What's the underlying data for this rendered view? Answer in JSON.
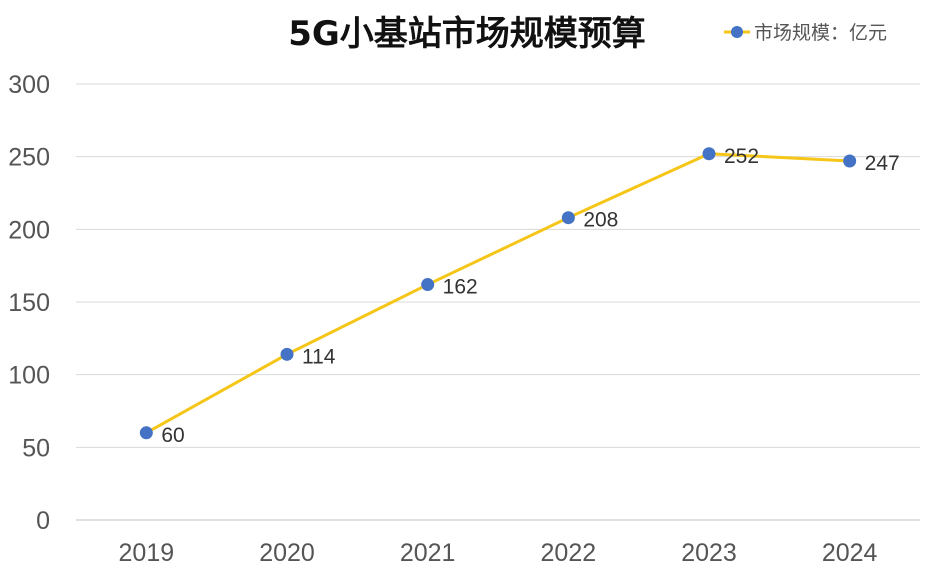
{
  "chart_data": {
    "type": "line",
    "title": "5G小基站市场规模预算",
    "categories": [
      "2019",
      "2020",
      "2021",
      "2022",
      "2023",
      "2024"
    ],
    "series": [
      {
        "name": "市场规模：亿元",
        "values": [
          60,
          114,
          162,
          208,
          252,
          247
        ]
      }
    ],
    "data_labels": [
      "60",
      "114",
      "162",
      "208",
      "252",
      "247"
    ],
    "ylim": [
      0,
      300
    ],
    "yticks": [
      0,
      50,
      100,
      150,
      200,
      250,
      300
    ],
    "ytick_labels": [
      "0",
      "50",
      "100",
      "150",
      "200",
      "250",
      "300"
    ],
    "xlabel": "",
    "ylabel": "",
    "grid": true,
    "legend_position": "top-right",
    "colors": {
      "line": "#F5C518",
      "marker": "#4472C4",
      "grid": "#D9D9D9",
      "axis": "#BFBFBF"
    }
  }
}
